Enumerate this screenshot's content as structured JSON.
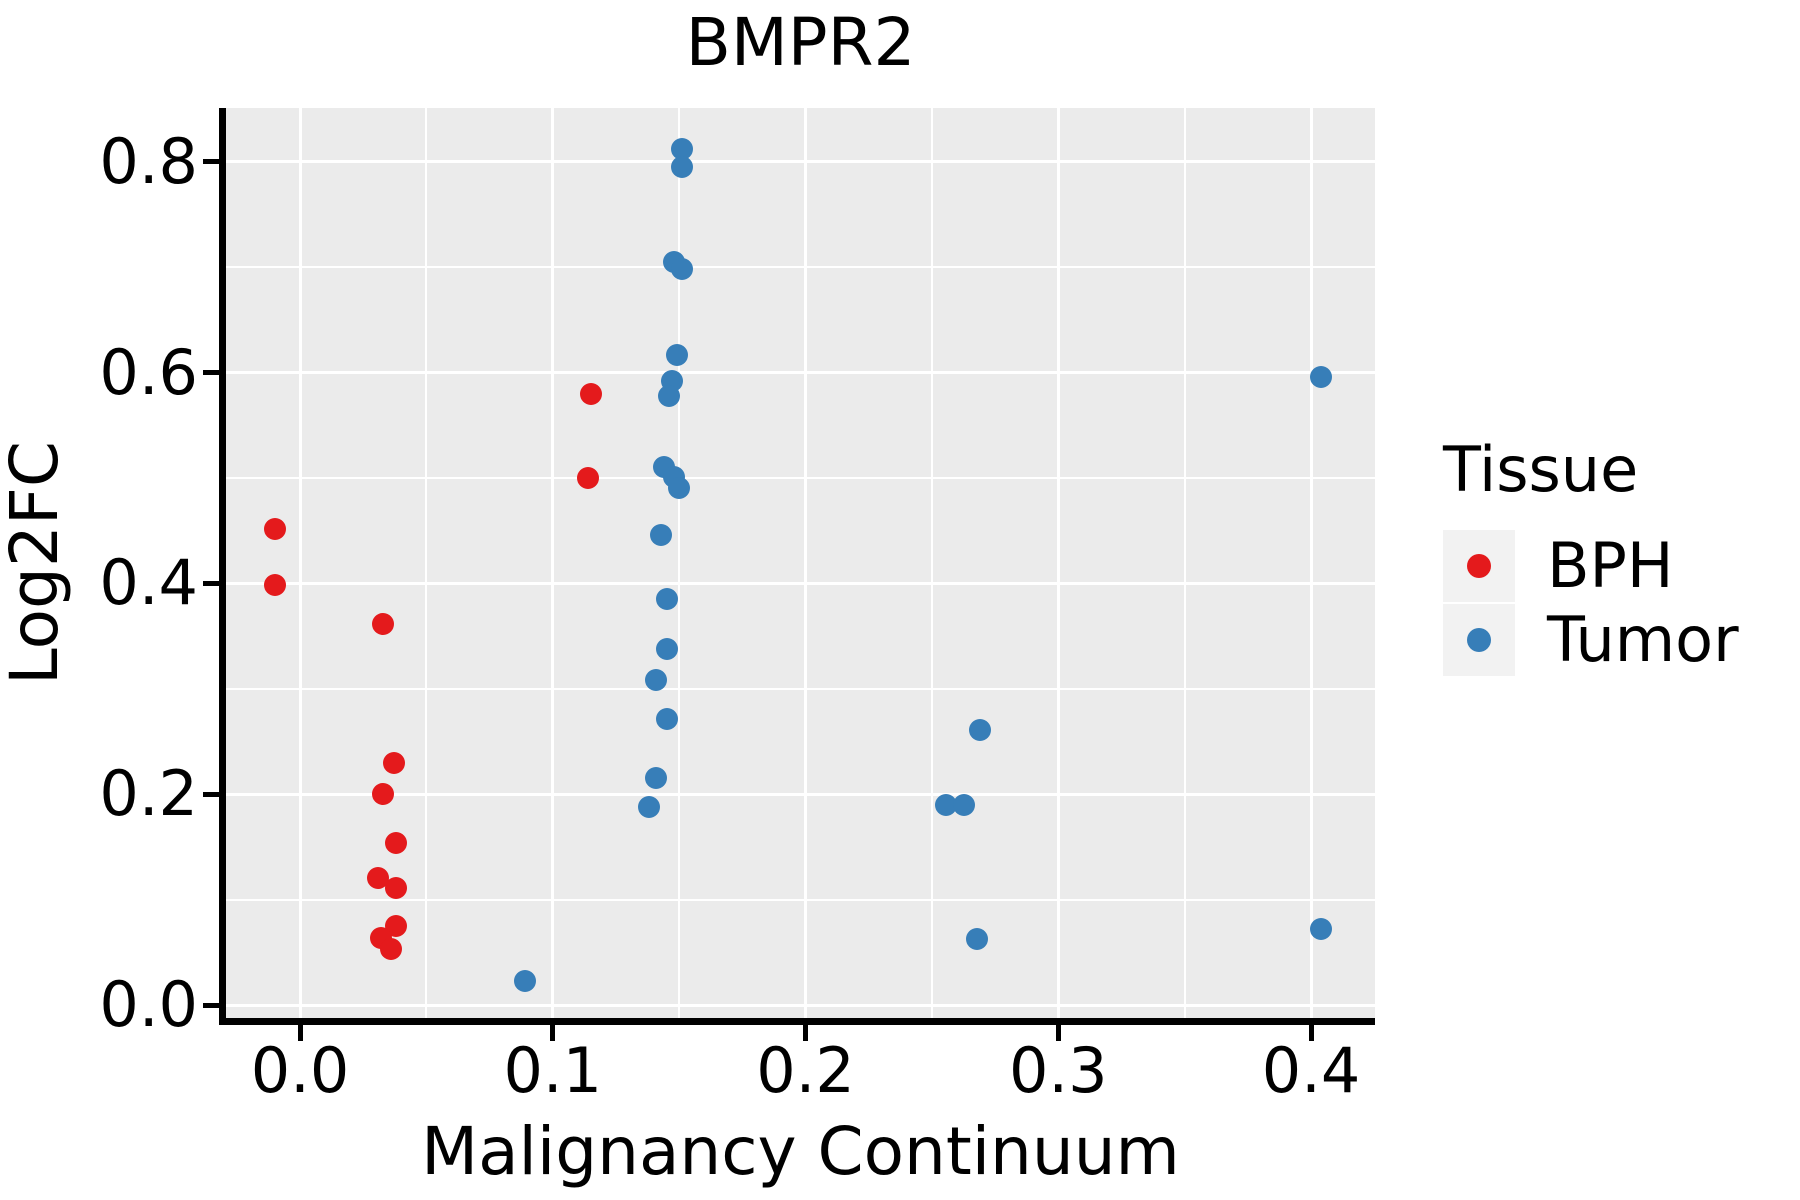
{
  "chart_data": {
    "type": "scatter",
    "title": "BMPR2",
    "xlabel": "Malignancy Continuum",
    "ylabel": "Log2FC",
    "xlim": [
      -0.0293,
      0.4253
    ],
    "ylim": [
      -0.0123,
      0.8512
    ],
    "x_ticks": [
      0.0,
      0.1,
      0.2,
      0.3,
      0.4
    ],
    "y_ticks": [
      0.0,
      0.2,
      0.4,
      0.6,
      0.8
    ],
    "x_minor_ticks": [
      0.05,
      0.15,
      0.25,
      0.35
    ],
    "y_minor_ticks": [
      0.1,
      0.3,
      0.5,
      0.7
    ],
    "tick_label_format": "one-decimal",
    "grid": "on",
    "panel_background": "#EBEBEB",
    "gridline_color": "#ffffff",
    "legend": {
      "position": "right",
      "title": "Tissue",
      "entries": [
        {
          "label": "BPH",
          "color": "#E41A1C"
        },
        {
          "label": "Tumor",
          "color": "#377EB8"
        }
      ]
    },
    "series": [
      {
        "name": "BPH",
        "color": "#E41A1C",
        "points": [
          [
            -0.01,
            0.452
          ],
          [
            -0.01,
            0.399
          ],
          [
            0.033,
            0.362
          ],
          [
            0.037,
            0.23
          ],
          [
            0.033,
            0.2
          ],
          [
            0.038,
            0.154
          ],
          [
            0.031,
            0.121
          ],
          [
            0.038,
            0.111
          ],
          [
            0.038,
            0.075
          ],
          [
            0.032,
            0.064
          ],
          [
            0.036,
            0.053
          ],
          [
            0.115,
            0.58
          ],
          [
            0.114,
            0.5
          ]
        ]
      },
      {
        "name": "Tumor",
        "color": "#377EB8",
        "points": [
          [
            0.089,
            0.023
          ],
          [
            0.151,
            0.812
          ],
          [
            0.151,
            0.795
          ],
          [
            0.148,
            0.705
          ],
          [
            0.151,
            0.698
          ],
          [
            0.149,
            0.617
          ],
          [
            0.147,
            0.592
          ],
          [
            0.146,
            0.578
          ],
          [
            0.144,
            0.511
          ],
          [
            0.148,
            0.501
          ],
          [
            0.15,
            0.491
          ],
          [
            0.143,
            0.446
          ],
          [
            0.145,
            0.385
          ],
          [
            0.145,
            0.338
          ],
          [
            0.141,
            0.308
          ],
          [
            0.145,
            0.271
          ],
          [
            0.141,
            0.215
          ],
          [
            0.138,
            0.188
          ],
          [
            0.269,
            0.261
          ],
          [
            0.2555,
            0.19
          ],
          [
            0.2625,
            0.19
          ],
          [
            0.268,
            0.063
          ],
          [
            0.404,
            0.596
          ],
          [
            0.404,
            0.072
          ]
        ]
      }
    ]
  }
}
